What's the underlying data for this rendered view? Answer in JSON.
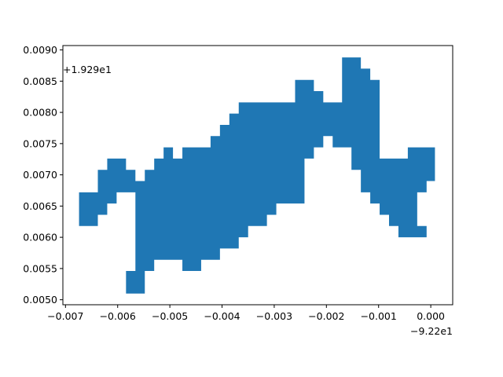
{
  "chart_data": {
    "type": "area",
    "title": "",
    "xlabel": "",
    "ylabel": "",
    "x_offset_label": "−9.22e1",
    "y_offset_label": "+1.929e1",
    "xlim": [
      -0.00705,
      0.00042
    ],
    "ylim": [
      0.00492,
      0.00907
    ],
    "x_ticks": [
      -0.007,
      -0.006,
      -0.005,
      -0.004,
      -0.003,
      -0.002,
      -0.001,
      0.0
    ],
    "x_tick_labels": [
      "−0.007",
      "−0.006",
      "−0.005",
      "−0.004",
      "−0.003",
      "−0.002",
      "−0.001",
      "0.000"
    ],
    "y_ticks": [
      0.005,
      0.0055,
      0.006,
      0.0065,
      0.007,
      0.0075,
      0.008,
      0.0085,
      0.009
    ],
    "y_tick_labels": [
      "0.0050",
      "0.0055",
      "0.0060",
      "0.0065",
      "0.0070",
      "0.0075",
      "0.0080",
      "0.0085",
      "0.0090"
    ],
    "fill_color": "#1f77b4",
    "series": [
      {
        "name": "polygon",
        "points": [
          [
            -0.00674,
            0.00672
          ],
          [
            -0.00638,
            0.00672
          ],
          [
            -0.00638,
            0.00708
          ],
          [
            -0.0062,
            0.00708
          ],
          [
            -0.0062,
            0.00726
          ],
          [
            -0.00584,
            0.00726
          ],
          [
            -0.00584,
            0.00708
          ],
          [
            -0.00566,
            0.00708
          ],
          [
            -0.00566,
            0.0069
          ],
          [
            -0.00548,
            0.0069
          ],
          [
            -0.00548,
            0.00708
          ],
          [
            -0.0053,
            0.00708
          ],
          [
            -0.0053,
            0.00726
          ],
          [
            -0.00512,
            0.00726
          ],
          [
            -0.00512,
            0.00744
          ],
          [
            -0.00494,
            0.00744
          ],
          [
            -0.00494,
            0.00726
          ],
          [
            -0.00476,
            0.00726
          ],
          [
            -0.00476,
            0.00744
          ],
          [
            -0.00422,
            0.00744
          ],
          [
            -0.00422,
            0.00762
          ],
          [
            -0.00404,
            0.00762
          ],
          [
            -0.00404,
            0.0078
          ],
          [
            -0.00386,
            0.0078
          ],
          [
            -0.00386,
            0.00798
          ],
          [
            -0.00368,
            0.00798
          ],
          [
            -0.00368,
            0.00816
          ],
          [
            -0.0026,
            0.00816
          ],
          [
            -0.0026,
            0.00852
          ],
          [
            -0.00224,
            0.00852
          ],
          [
            -0.00224,
            0.00834
          ],
          [
            -0.00206,
            0.00834
          ],
          [
            -0.00206,
            0.00816
          ],
          [
            -0.0017,
            0.00816
          ],
          [
            -0.0017,
            0.00888
          ],
          [
            -0.00134,
            0.00888
          ],
          [
            -0.00134,
            0.0087
          ],
          [
            -0.00116,
            0.0087
          ],
          [
            -0.00116,
            0.00852
          ],
          [
            -0.00098,
            0.00852
          ],
          [
            -0.00098,
            0.00726
          ],
          [
            -0.00044,
            0.00726
          ],
          [
            -0.00044,
            0.00744
          ],
          [
            8e-05,
            0.00744
          ],
          [
            8e-05,
            0.0069
          ],
          [
            -8e-05,
            0.0069
          ],
          [
            -8e-05,
            0.00672
          ],
          [
            -0.00026,
            0.00672
          ],
          [
            -0.00026,
            0.00618
          ],
          [
            -8e-05,
            0.00618
          ],
          [
            -8e-05,
            0.006
          ],
          [
            -0.00062,
            0.006
          ],
          [
            -0.00062,
            0.00618
          ],
          [
            -0.0008,
            0.00618
          ],
          [
            -0.0008,
            0.00636
          ],
          [
            -0.00098,
            0.00636
          ],
          [
            -0.00098,
            0.00654
          ],
          [
            -0.00116,
            0.00654
          ],
          [
            -0.00116,
            0.00672
          ],
          [
            -0.00134,
            0.00672
          ],
          [
            -0.00134,
            0.00708
          ],
          [
            -0.00152,
            0.00708
          ],
          [
            -0.00152,
            0.00744
          ],
          [
            -0.00188,
            0.00744
          ],
          [
            -0.00188,
            0.00762
          ],
          [
            -0.00206,
            0.00762
          ],
          [
            -0.00206,
            0.00744
          ],
          [
            -0.00224,
            0.00744
          ],
          [
            -0.00224,
            0.00726
          ],
          [
            -0.00242,
            0.00726
          ],
          [
            -0.00242,
            0.00654
          ],
          [
            -0.00296,
            0.00654
          ],
          [
            -0.00296,
            0.00636
          ],
          [
            -0.00314,
            0.00636
          ],
          [
            -0.00314,
            0.00618
          ],
          [
            -0.0035,
            0.00618
          ],
          [
            -0.0035,
            0.006
          ],
          [
            -0.00368,
            0.006
          ],
          [
            -0.00368,
            0.00582
          ],
          [
            -0.00404,
            0.00582
          ],
          [
            -0.00404,
            0.00564
          ],
          [
            -0.0044,
            0.00564
          ],
          [
            -0.0044,
            0.00546
          ],
          [
            -0.00476,
            0.00546
          ],
          [
            -0.00476,
            0.00564
          ],
          [
            -0.0053,
            0.00564
          ],
          [
            -0.0053,
            0.00546
          ],
          [
            -0.00548,
            0.00546
          ],
          [
            -0.00548,
            0.0051
          ],
          [
            -0.00584,
            0.0051
          ],
          [
            -0.00584,
            0.00546
          ],
          [
            -0.00566,
            0.00546
          ],
          [
            -0.00566,
            0.00672
          ],
          [
            -0.00602,
            0.00672
          ],
          [
            -0.00602,
            0.00654
          ],
          [
            -0.0062,
            0.00654
          ],
          [
            -0.0062,
            0.00636
          ],
          [
            -0.00638,
            0.00636
          ],
          [
            -0.00638,
            0.00618
          ],
          [
            -0.00674,
            0.00618
          ]
        ]
      }
    ]
  }
}
